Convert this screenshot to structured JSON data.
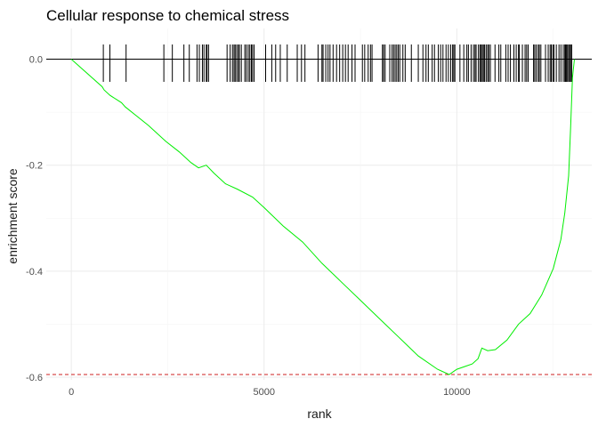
{
  "chart_data": {
    "type": "line",
    "title": "Cellular response to chemical stress",
    "xlabel": "rank",
    "ylabel": "enrichment score",
    "xlim": [
      -650,
      13500
    ],
    "ylim": [
      -0.605,
      0.058
    ],
    "x_ticks": [
      0,
      5000,
      10000
    ],
    "x_tick_labels": [
      "0",
      "5000",
      "10000"
    ],
    "y_ticks": [
      0.0,
      -0.2,
      -0.4,
      -0.6
    ],
    "y_tick_labels": [
      "0.0",
      "-0.2",
      "-0.4",
      "-0.6"
    ],
    "grid": true,
    "legend": "none",
    "series": [
      {
        "color": "#00ee00",
        "x": [
          0,
          800,
          850,
          1000,
          1300,
          1400,
          2000,
          2450,
          2800,
          3100,
          3300,
          3500,
          3700,
          4000,
          4300,
          4700,
          5000,
          5500,
          6000,
          6500,
          7000,
          7500,
          8000,
          8500,
          9000,
          9500,
          9800,
          10000,
          10200,
          10400,
          10550,
          10650,
          10800,
          11000,
          11300,
          11600,
          11900,
          12200,
          12500,
          12700,
          12800,
          12900,
          12950,
          13000,
          13050
        ],
        "y": [
          0.0,
          -0.052,
          -0.058,
          -0.068,
          -0.082,
          -0.09,
          -0.125,
          -0.155,
          -0.175,
          -0.195,
          -0.205,
          -0.2,
          -0.215,
          -0.235,
          -0.245,
          -0.26,
          -0.28,
          -0.315,
          -0.345,
          -0.385,
          -0.42,
          -0.455,
          -0.49,
          -0.525,
          -0.56,
          -0.585,
          -0.595,
          -0.585,
          -0.58,
          -0.575,
          -0.565,
          -0.545,
          -0.55,
          -0.548,
          -0.53,
          -0.5,
          -0.48,
          -0.445,
          -0.395,
          -0.34,
          -0.29,
          -0.22,
          -0.13,
          -0.035,
          0.0
        ]
      }
    ],
    "reference_lines": {
      "zero": 0.0,
      "min_es": -0.595,
      "min_es_color": "#cc2222"
    },
    "hits_color": "#000000",
    "hits": [
      830,
      1000,
      1420,
      2400,
      2620,
      2920,
      3060,
      3260,
      3320,
      3400,
      3440,
      3500,
      3520,
      3560,
      4040,
      4120,
      4180,
      4220,
      4250,
      4290,
      4330,
      4360,
      4410,
      4500,
      4540,
      4590,
      4630,
      4670,
      4700,
      4740,
      5040,
      5200,
      5300,
      5420,
      5600,
      5860,
      5970,
      6060,
      6400,
      6500,
      6530,
      6600,
      6660,
      6710,
      6790,
      6880,
      6960,
      7040,
      7110,
      7180,
      7280,
      7360,
      7550,
      7610,
      7700,
      7760,
      7800,
      8070,
      8100,
      8140,
      8260,
      8320,
      8360,
      8400,
      8440,
      8480,
      8520,
      8600,
      8660,
      8820,
      9000,
      9120,
      9200,
      9260,
      9360,
      9420,
      9520,
      9580,
      9640,
      9720,
      9780,
      9840,
      9890,
      9920,
      9950,
      10080,
      10180,
      10260,
      10300,
      10370,
      10430,
      10470,
      10500,
      10560,
      10600,
      10630,
      10660,
      10690,
      10720,
      10760,
      10800,
      10830,
      10870,
      10990,
      11090,
      11140,
      11270,
      11330,
      11390,
      11480,
      11540,
      11600,
      11620,
      11700,
      11770,
      11810,
      11850,
      11990,
      12020,
      12060,
      12110,
      12140,
      12180,
      12300,
      12370,
      12420,
      12450,
      12490,
      12520,
      12580,
      12650,
      12700,
      12760,
      12800,
      12820,
      12840,
      12870,
      12900,
      12930,
      12950,
      12980
    ]
  }
}
